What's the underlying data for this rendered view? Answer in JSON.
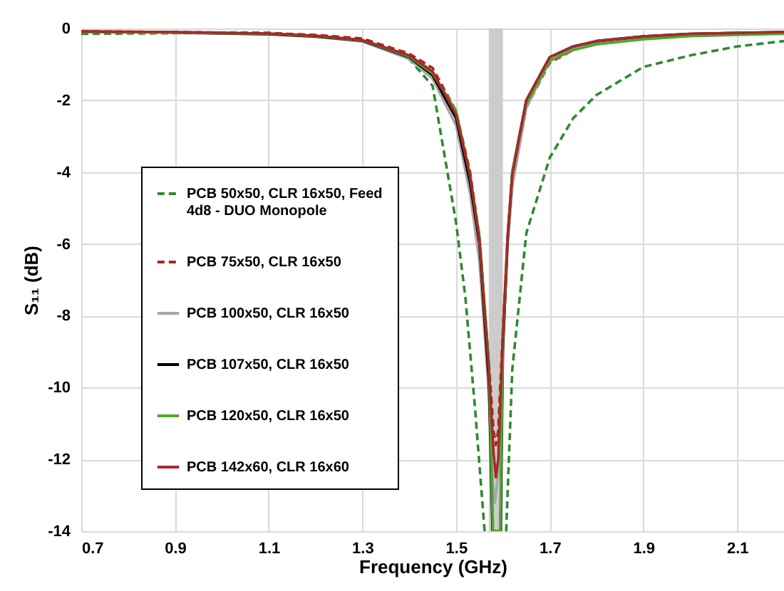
{
  "chart_data": {
    "type": "line",
    "xlabel": "Frequency (GHz)",
    "ylabel": "S₁₁ (dB)",
    "xlim": [
      0.7,
      2.2
    ],
    "xticks": [
      0.7,
      0.9,
      1.1,
      1.3,
      1.5,
      1.7,
      1.9,
      2.1
    ],
    "ylim": [
      -14,
      0
    ],
    "yticks": [
      0,
      -2,
      -4,
      -6,
      -8,
      -10,
      -12,
      -14
    ],
    "grid": true,
    "legend": "bottom left",
    "bands": [
      {
        "axis": "x",
        "from": 1.57,
        "to": 1.6,
        "color": "#cccccc"
      }
    ],
    "series": [
      {
        "name": "PCB 50x50, CLR 16x50, Feed 4d8 - DUO Monopole",
        "color": "#2e8b2e",
        "line_style": "dashed",
        "x": [
          0.7,
          0.9,
          1.1,
          1.2,
          1.3,
          1.35,
          1.4,
          1.45,
          1.5,
          1.52,
          1.54,
          1.561,
          1.57,
          1.6,
          1.607,
          1.62,
          1.65,
          1.7,
          1.75,
          1.8,
          1.9,
          2.0,
          2.1,
          2.2
        ],
        "values": [
          -0.15,
          -0.13,
          -0.12,
          -0.2,
          -0.35,
          -0.5,
          -0.85,
          -1.6,
          -5.4,
          -7.5,
          -10.5,
          -14,
          null,
          null,
          -14,
          -9.5,
          -5.7,
          -3.6,
          -2.5,
          -1.85,
          -1.07,
          -0.75,
          -0.5,
          -0.35
        ]
      },
      {
        "name": "PCB 75x50, CLR 16x50",
        "color": "#b22222",
        "line_style": "dashed",
        "x": [
          0.7,
          0.9,
          1.1,
          1.2,
          1.3,
          1.4,
          1.45,
          1.5,
          1.53,
          1.55,
          1.57,
          1.58,
          1.585,
          1.59,
          1.6,
          1.61,
          1.62,
          1.65,
          1.7,
          1.75,
          1.8,
          1.9,
          2.0,
          2.2
        ],
        "values": [
          -0.08,
          -0.1,
          -0.13,
          -0.18,
          -0.28,
          -0.7,
          -1.1,
          -2.3,
          -4.0,
          -5.8,
          -9.3,
          -11.2,
          -11.6,
          -11.2,
          -8.4,
          -5.9,
          -4.3,
          -2.2,
          -0.95,
          -0.6,
          -0.4,
          -0.27,
          -0.18,
          -0.12
        ]
      },
      {
        "name": "PCB 100x50, CLR 16x50",
        "color": "#a6a6a6",
        "line_style": "solid",
        "x": [
          0.7,
          0.9,
          1.1,
          1.2,
          1.3,
          1.4,
          1.45,
          1.5,
          1.53,
          1.55,
          1.57,
          1.578,
          1.583,
          1.59,
          1.6,
          1.61,
          1.62,
          1.65,
          1.7,
          1.75,
          1.8,
          1.9,
          2.0,
          2.2
        ],
        "values": [
          -0.1,
          -0.12,
          -0.17,
          -0.23,
          -0.36,
          -0.85,
          -1.4,
          -2.7,
          -4.6,
          -6.5,
          -10.2,
          -12.6,
          -13.2,
          -12.4,
          -8.8,
          -6.1,
          -4.4,
          -2.2,
          -0.9,
          -0.55,
          -0.38,
          -0.24,
          -0.16,
          -0.11
        ]
      },
      {
        "name": "PCB 107x50, CLR 16x50",
        "color": "#000000",
        "line_style": "solid",
        "x": [
          0.7,
          0.9,
          1.1,
          1.2,
          1.3,
          1.4,
          1.45,
          1.5,
          1.53,
          1.55,
          1.57,
          1.578,
          1.595,
          1.6,
          1.61,
          1.62,
          1.65,
          1.7,
          1.75,
          1.8,
          1.9,
          2.0,
          2.2
        ],
        "values": [
          -0.09,
          -0.11,
          -0.16,
          -0.22,
          -0.34,
          -0.8,
          -1.3,
          -2.5,
          -4.3,
          -6.0,
          -9.8,
          -14,
          -14,
          -9.0,
          -5.9,
          -4.0,
          -2.0,
          -0.8,
          -0.5,
          -0.35,
          -0.22,
          -0.15,
          -0.1
        ]
      },
      {
        "name": "PCB 120x50, CLR 16x50",
        "color": "#4ea72e",
        "line_style": "solid",
        "x": [
          0.7,
          0.9,
          1.1,
          1.2,
          1.3,
          1.4,
          1.45,
          1.5,
          1.53,
          1.55,
          1.57,
          1.579,
          1.594,
          1.6,
          1.61,
          1.62,
          1.65,
          1.7,
          1.75,
          1.8,
          1.9,
          2.0,
          2.2
        ],
        "values": [
          -0.09,
          -0.11,
          -0.15,
          -0.21,
          -0.33,
          -0.78,
          -1.25,
          -2.3,
          -4.1,
          -5.8,
          -9.3,
          -14,
          -14,
          -8.8,
          -5.8,
          -4.0,
          -2.1,
          -0.9,
          -0.6,
          -0.44,
          -0.3,
          -0.21,
          -0.15
        ]
      },
      {
        "name": "PCB 142x60, CLR 16x60",
        "color": "#a52a2a",
        "line_style": "solid",
        "x": [
          0.7,
          0.9,
          1.1,
          1.2,
          1.3,
          1.4,
          1.45,
          1.5,
          1.53,
          1.55,
          1.57,
          1.58,
          1.585,
          1.59,
          1.6,
          1.61,
          1.62,
          1.65,
          1.7,
          1.75,
          1.8,
          1.9,
          2.0,
          2.2
        ],
        "values": [
          -0.08,
          -0.1,
          -0.14,
          -0.2,
          -0.32,
          -0.75,
          -1.2,
          -2.4,
          -4.1,
          -5.9,
          -9.5,
          -11.8,
          -12.5,
          -12,
          -8.5,
          -5.8,
          -4.1,
          -2.0,
          -0.8,
          -0.5,
          -0.35,
          -0.22,
          -0.15,
          -0.1
        ]
      }
    ]
  }
}
